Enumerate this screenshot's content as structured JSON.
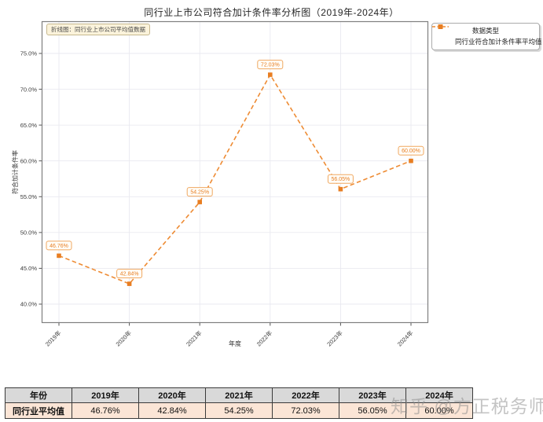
{
  "title": "同行业上市公司符合加计条件率分析图（2019年-2024年）",
  "annotation": {
    "text": "折线图：同行业上市公司平均值数据"
  },
  "legend": {
    "title": "数据类型",
    "entry": "同行业符合加计条件率平均值"
  },
  "axes": {
    "xlabel": "年度",
    "ylabel": "符合加计条件率"
  },
  "watermark": "知乎 @方正税务师",
  "colors": {
    "line": "#EE8B33",
    "marker": "#E87E22",
    "point_label_text": "#E87E22",
    "point_label_border": "#F0A860",
    "point_label_bg": "#FFFDF8",
    "grid": "#E9E9F0",
    "spine": "#7F7F7F",
    "tick_text": "#3d3d3d",
    "table_header_bg": "#D9D9D9",
    "table_row_bg": "#FBE5D6"
  },
  "chart_data": {
    "type": "line",
    "title": "同行业上市公司符合加计条件率分析图（2019年-2024年）",
    "categories": [
      "2019年",
      "2020年",
      "2021年",
      "2022年",
      "2023年",
      "2024年"
    ],
    "series": [
      {
        "name": "同行业符合加计条件率平均值",
        "values": [
          46.76,
          42.84,
          54.25,
          72.03,
          56.05,
          60.0
        ]
      }
    ],
    "point_labels": [
      "46.76%",
      "42.84%",
      "54.25%",
      "72.03%",
      "56.05%",
      "60.00%"
    ],
    "xlabel": "年度",
    "ylabel": "符合加计条件率",
    "ylim": [
      40,
      75
    ],
    "ytick_values": [
      40,
      45,
      50,
      55,
      60,
      65,
      70,
      75
    ],
    "ytick_labels": [
      "40.0%",
      "45.0%",
      "50.0%",
      "55.0%",
      "60.0%",
      "65.0%",
      "70.0%",
      "75.0%"
    ],
    "grid": true,
    "line_style": "dashed",
    "marker": "square",
    "legend_position": "top-right-outside"
  },
  "table": {
    "headers": [
      "年份",
      "2019年",
      "2020年",
      "2021年",
      "2022年",
      "2023年",
      "2024年"
    ],
    "rows": [
      [
        "同行业平均值",
        "46.76%",
        "42.84%",
        "54.25%",
        "72.03%",
        "56.05%",
        "60.00%"
      ]
    ]
  }
}
